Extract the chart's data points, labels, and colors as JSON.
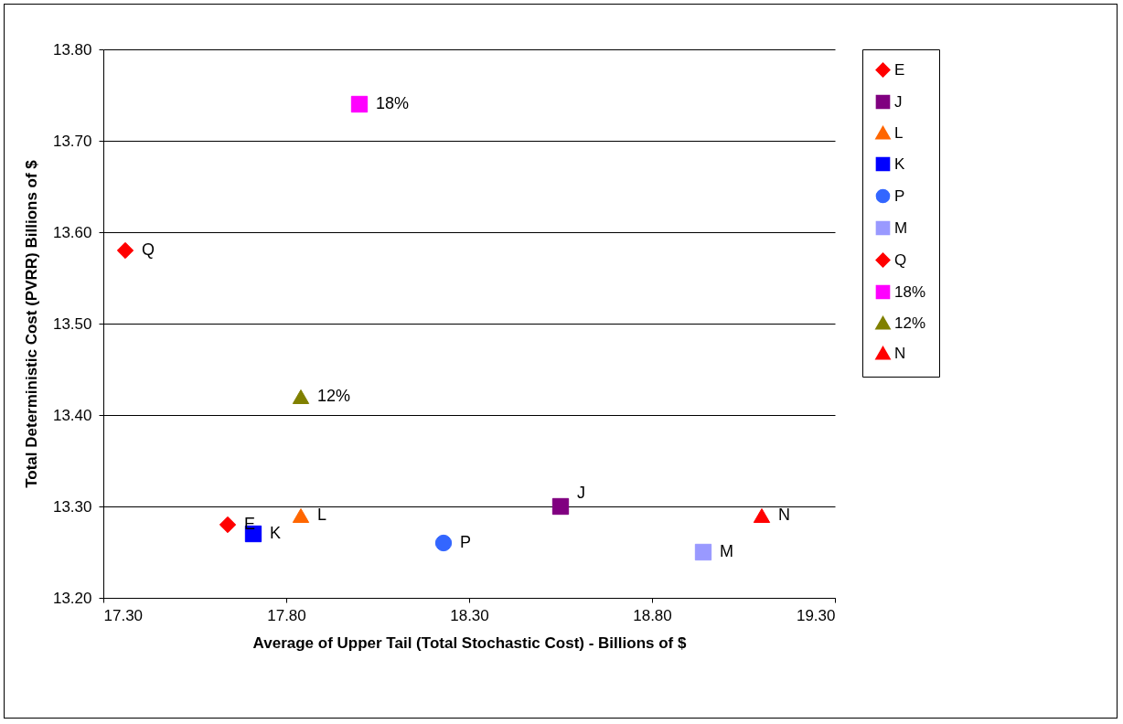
{
  "chart_data": {
    "type": "scatter",
    "xlabel": "Average of Upper Tail (Total Stochastic Cost) - Billions of $",
    "ylabel": "Total Deterministic Cost (PVRR) Billions of $",
    "xlim": [
      17.3,
      19.3
    ],
    "xticks": [
      {
        "value": 17.3,
        "label": "17.30"
      },
      {
        "value": 17.8,
        "label": "17.80"
      },
      {
        "value": 18.3,
        "label": "18.30"
      },
      {
        "value": 18.8,
        "label": "18.80"
      },
      {
        "value": 19.3,
        "label": "19.30"
      }
    ],
    "ylim": [
      13.2,
      13.8
    ],
    "yticks": [
      {
        "value": 13.2,
        "label": "13.20"
      },
      {
        "value": 13.3,
        "label": "13.30"
      },
      {
        "value": 13.4,
        "label": "13.40"
      },
      {
        "value": 13.5,
        "label": "13.50"
      },
      {
        "value": 13.6,
        "label": "13.60"
      },
      {
        "value": 13.7,
        "label": "13.70"
      },
      {
        "value": 13.8,
        "label": "13.80"
      }
    ],
    "grid": "y",
    "legend": "right",
    "series": [
      {
        "name": "E",
        "color": "#ff0000",
        "marker": "diamond",
        "x": [
          17.64
        ],
        "values": [
          13.28
        ]
      },
      {
        "name": "J",
        "color": "#800080",
        "marker": "square",
        "x": [
          18.55
        ],
        "values": [
          13.3
        ]
      },
      {
        "name": "L",
        "color": "#ff6600",
        "marker": "triangle",
        "x": [
          17.84
        ],
        "values": [
          13.29
        ]
      },
      {
        "name": "K",
        "color": "#0000ff",
        "marker": "square",
        "x": [
          17.71
        ],
        "values": [
          13.27
        ]
      },
      {
        "name": "P",
        "color": "#3366ff",
        "marker": "circle",
        "x": [
          18.23
        ],
        "values": [
          13.26
        ]
      },
      {
        "name": "M",
        "color": "#9999ff",
        "marker": "square",
        "x": [
          18.94
        ],
        "values": [
          13.25
        ]
      },
      {
        "name": "Q",
        "color": "#ff0000",
        "marker": "diamond",
        "x": [
          17.36
        ],
        "values": [
          13.58
        ]
      },
      {
        "name": "18%",
        "color": "#ff00ff",
        "marker": "square",
        "x": [
          18.0
        ],
        "values": [
          13.74
        ]
      },
      {
        "name": "12%",
        "color": "#808000",
        "marker": "triangle",
        "x": [
          17.84
        ],
        "values": [
          13.42
        ]
      },
      {
        "name": "N",
        "color": "#ff0000",
        "marker": "triangle",
        "x": [
          19.1
        ],
        "values": [
          13.29
        ]
      }
    ]
  }
}
